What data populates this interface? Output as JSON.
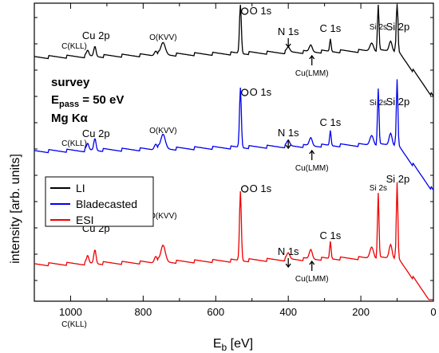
{
  "chart_data": {
    "type": "line",
    "xlabel": "E",
    "xlabel_sub": "b",
    "xlabel_unit": " [eV]",
    "ylabel": "intensity [arb. units]",
    "xlim": [
      1100,
      0
    ],
    "x_reversed": true,
    "xticks": [
      1000,
      800,
      600,
      400,
      200,
      0
    ],
    "legend": {
      "placement": "left",
      "entries": [
        "LI",
        "Bladecasted",
        "ESI"
      ]
    },
    "info_text": {
      "line1": "survey",
      "line2_main": "E",
      "line2_sub": "pass",
      "line2_rest": " = 50 eV",
      "line3": "Mg Kα"
    },
    "series": [
      {
        "name": "LI",
        "color": "#000000",
        "annotations": [
          {
            "text": "C(KLL)",
            "x": 990,
            "size": "small"
          },
          {
            "text": "Cu 2p",
            "x": 930,
            "size": "large"
          },
          {
            "text": "O(KVV)",
            "x": 745,
            "size": "small"
          },
          {
            "text": "O 1s",
            "x": 520,
            "size": "large",
            "circle": true
          },
          {
            "text": "N 1s",
            "x": 400,
            "size": "large"
          },
          {
            "text": "Cu(LMM)",
            "x": 335,
            "size": "small"
          },
          {
            "text": "C 1s",
            "x": 284,
            "size": "large"
          },
          {
            "text": "Si 2s",
            "x": 152,
            "size": "small"
          },
          {
            "text": "Si 2p",
            "x": 98,
            "size": "large"
          }
        ]
      },
      {
        "name": "Bladecasted",
        "color": "#0000ee",
        "annotations": [
          {
            "text": "C(KLL)",
            "x": 990,
            "size": "small"
          },
          {
            "text": "Cu 2p",
            "x": 930,
            "size": "large"
          },
          {
            "text": "O(KVV)",
            "x": 745,
            "size": "small"
          },
          {
            "text": "O 1s",
            "x": 520,
            "size": "large",
            "circle": true
          },
          {
            "text": "N 1s",
            "x": 400,
            "size": "large"
          },
          {
            "text": "Cu(LMM)",
            "x": 335,
            "size": "small"
          },
          {
            "text": "C 1s",
            "x": 284,
            "size": "large"
          },
          {
            "text": "Si 2s",
            "x": 152,
            "size": "small"
          },
          {
            "text": "Si 2p",
            "x": 98,
            "size": "large"
          }
        ]
      },
      {
        "name": "ESI",
        "color": "#ee0000",
        "annotations": [
          {
            "text": "C(KLL)",
            "x": 990,
            "size": "small"
          },
          {
            "text": "Cu 2p",
            "x": 930,
            "size": "large"
          },
          {
            "text": "O(KVV)",
            "x": 745,
            "size": "small"
          },
          {
            "text": "O 1s",
            "x": 520,
            "size": "large",
            "circle": true
          },
          {
            "text": "N 1s",
            "x": 400,
            "size": "large"
          },
          {
            "text": "Cu(LMM)",
            "x": 335,
            "size": "small"
          },
          {
            "text": "C 1s",
            "x": 284,
            "size": "large"
          },
          {
            "text": "Si 2s",
            "x": 152,
            "size": "small"
          },
          {
            "text": "Si 2p",
            "x": 98,
            "size": "large"
          }
        ]
      }
    ]
  }
}
